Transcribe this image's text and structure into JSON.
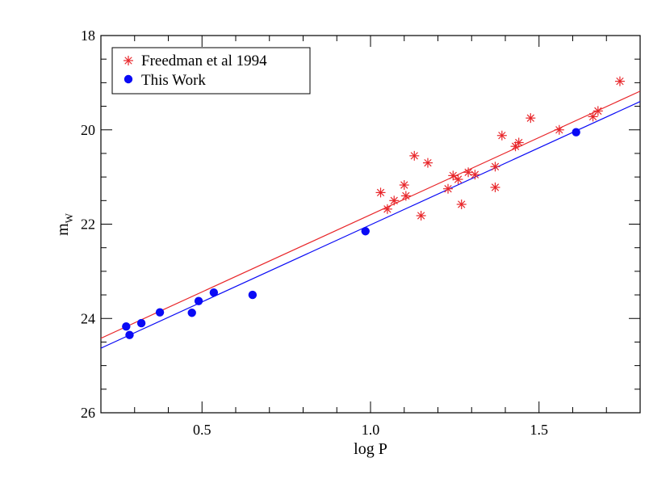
{
  "chart_data": {
    "type": "scatter",
    "title": "",
    "xlabel": "log P",
    "ylabel": "m",
    "ylabel_subscript": "W",
    "xlim": [
      0.2,
      1.8
    ],
    "ylim": [
      26,
      18
    ],
    "y_inverted": true,
    "x_ticks": [
      0.5,
      1.0,
      1.5
    ],
    "x_tick_labels": [
      "0.5",
      "1.0",
      "1.5"
    ],
    "y_ticks": [
      18,
      20,
      22,
      24,
      26
    ],
    "y_tick_labels": [
      "18",
      "20",
      "22",
      "24",
      "26"
    ],
    "grid": false,
    "legend_position": "top-left",
    "series": [
      {
        "name": "Freedman et al 1994",
        "marker": "asterisk",
        "color": "#e8262a",
        "points": [
          [
            1.03,
            21.33
          ],
          [
            1.05,
            21.68
          ],
          [
            1.07,
            21.5
          ],
          [
            1.1,
            21.17
          ],
          [
            1.105,
            21.4
          ],
          [
            1.13,
            20.55
          ],
          [
            1.15,
            21.82
          ],
          [
            1.17,
            20.7
          ],
          [
            1.23,
            21.25
          ],
          [
            1.245,
            20.97
          ],
          [
            1.26,
            21.05
          ],
          [
            1.27,
            21.58
          ],
          [
            1.29,
            20.9
          ],
          [
            1.31,
            20.95
          ],
          [
            1.37,
            20.78
          ],
          [
            1.37,
            21.22
          ],
          [
            1.39,
            20.12
          ],
          [
            1.43,
            20.35
          ],
          [
            1.44,
            20.27
          ],
          [
            1.475,
            19.75
          ],
          [
            1.56,
            20.0
          ],
          [
            1.66,
            19.72
          ],
          [
            1.675,
            19.6
          ],
          [
            1.74,
            18.97
          ]
        ],
        "fit": {
          "x": [
            0.2,
            1.8
          ],
          "y": [
            24.42,
            19.18
          ]
        }
      },
      {
        "name": "This Work",
        "marker": "filled-circle",
        "color": "#0a0af5",
        "points": [
          [
            0.275,
            24.17
          ],
          [
            0.285,
            24.35
          ],
          [
            0.32,
            24.1
          ],
          [
            0.375,
            23.87
          ],
          [
            0.47,
            23.88
          ],
          [
            0.49,
            23.63
          ],
          [
            0.535,
            23.45
          ],
          [
            0.65,
            23.5
          ],
          [
            0.985,
            22.15
          ],
          [
            1.61,
            20.05
          ]
        ],
        "fit": {
          "x": [
            0.2,
            1.8
          ],
          "y": [
            24.63,
            19.4
          ]
        }
      }
    ]
  }
}
